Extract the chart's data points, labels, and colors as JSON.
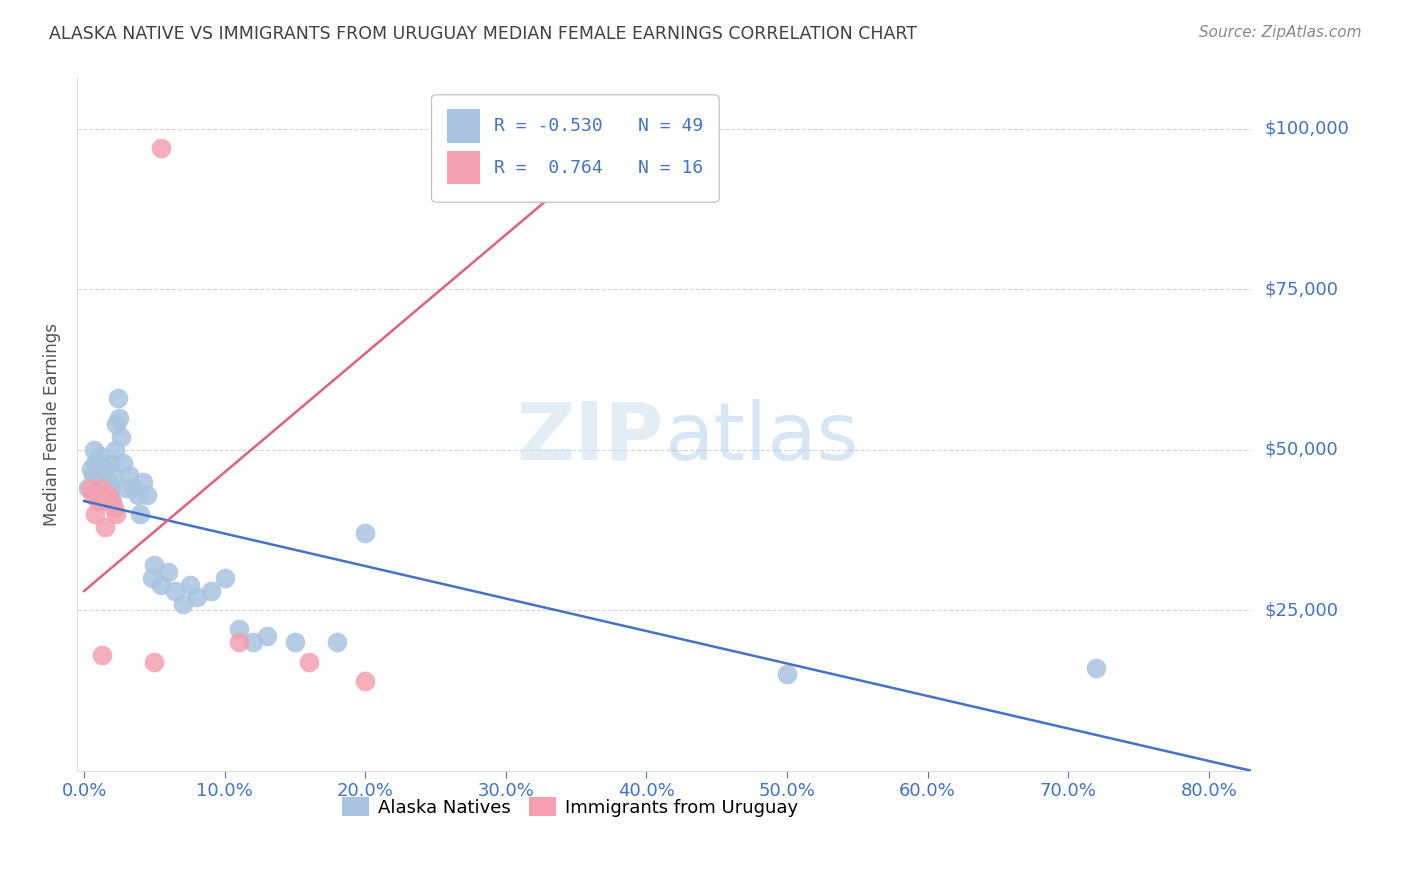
{
  "title": "ALASKA NATIVE VS IMMIGRANTS FROM URUGUAY MEDIAN FEMALE EARNINGS CORRELATION CHART",
  "source": "Source: ZipAtlas.com",
  "ylabel": "Median Female Earnings",
  "xlabel_ticks": [
    "0.0%",
    "10.0%",
    "20.0%",
    "30.0%",
    "40.0%",
    "50.0%",
    "60.0%",
    "70.0%",
    "80.0%"
  ],
  "ytick_labels": [
    "$100,000",
    "$75,000",
    "$50,000",
    "$25,000"
  ],
  "ytick_values": [
    100000,
    75000,
    50000,
    25000
  ],
  "ylim": [
    0,
    108000
  ],
  "xlim": [
    -0.005,
    0.83
  ],
  "color_blue": "#a8c4e0",
  "color_pink": "#f4a0b0",
  "color_line_blue": "#4472c4",
  "color_line_pink": "#e06080",
  "color_axis_labels": "#4472c4",
  "title_color": "#404040",
  "source_color": "#888888",
  "blue_scatter_x": [
    0.003,
    0.005,
    0.006,
    0.007,
    0.008,
    0.009,
    0.01,
    0.011,
    0.012,
    0.013,
    0.014,
    0.015,
    0.016,
    0.017,
    0.018,
    0.019,
    0.02,
    0.021,
    0.022,
    0.023,
    0.024,
    0.025,
    0.026,
    0.028,
    0.03,
    0.032,
    0.035,
    0.038,
    0.04,
    0.042,
    0.045,
    0.048,
    0.05,
    0.055,
    0.06,
    0.065,
    0.07,
    0.075,
    0.08,
    0.09,
    0.1,
    0.11,
    0.12,
    0.13,
    0.15,
    0.18,
    0.2,
    0.5,
    0.72
  ],
  "blue_scatter_y": [
    44000,
    47000,
    46000,
    50000,
    48000,
    45000,
    43000,
    49000,
    46000,
    42000,
    44000,
    47000,
    43000,
    45000,
    48000,
    44000,
    42000,
    46000,
    50000,
    54000,
    58000,
    55000,
    52000,
    48000,
    44000,
    46000,
    44000,
    43000,
    40000,
    45000,
    43000,
    30000,
    32000,
    29000,
    31000,
    28000,
    26000,
    29000,
    27000,
    28000,
    30000,
    22000,
    20000,
    21000,
    20000,
    20000,
    37000,
    15000,
    16000
  ],
  "pink_scatter_x": [
    0.004,
    0.006,
    0.008,
    0.01,
    0.012,
    0.013,
    0.015,
    0.017,
    0.019,
    0.021,
    0.023,
    0.05,
    0.055,
    0.11,
    0.16,
    0.2
  ],
  "pink_scatter_y": [
    44000,
    43000,
    40000,
    42000,
    44000,
    18000,
    38000,
    43000,
    42000,
    41000,
    40000,
    17000,
    97000,
    20000,
    17000,
    14000
  ],
  "blue_line_x": [
    0.0,
    0.83
  ],
  "blue_line_y": [
    42000,
    0
  ],
  "pink_line_x": [
    0.0,
    0.4
  ],
  "pink_line_y": [
    28000,
    102000
  ]
}
